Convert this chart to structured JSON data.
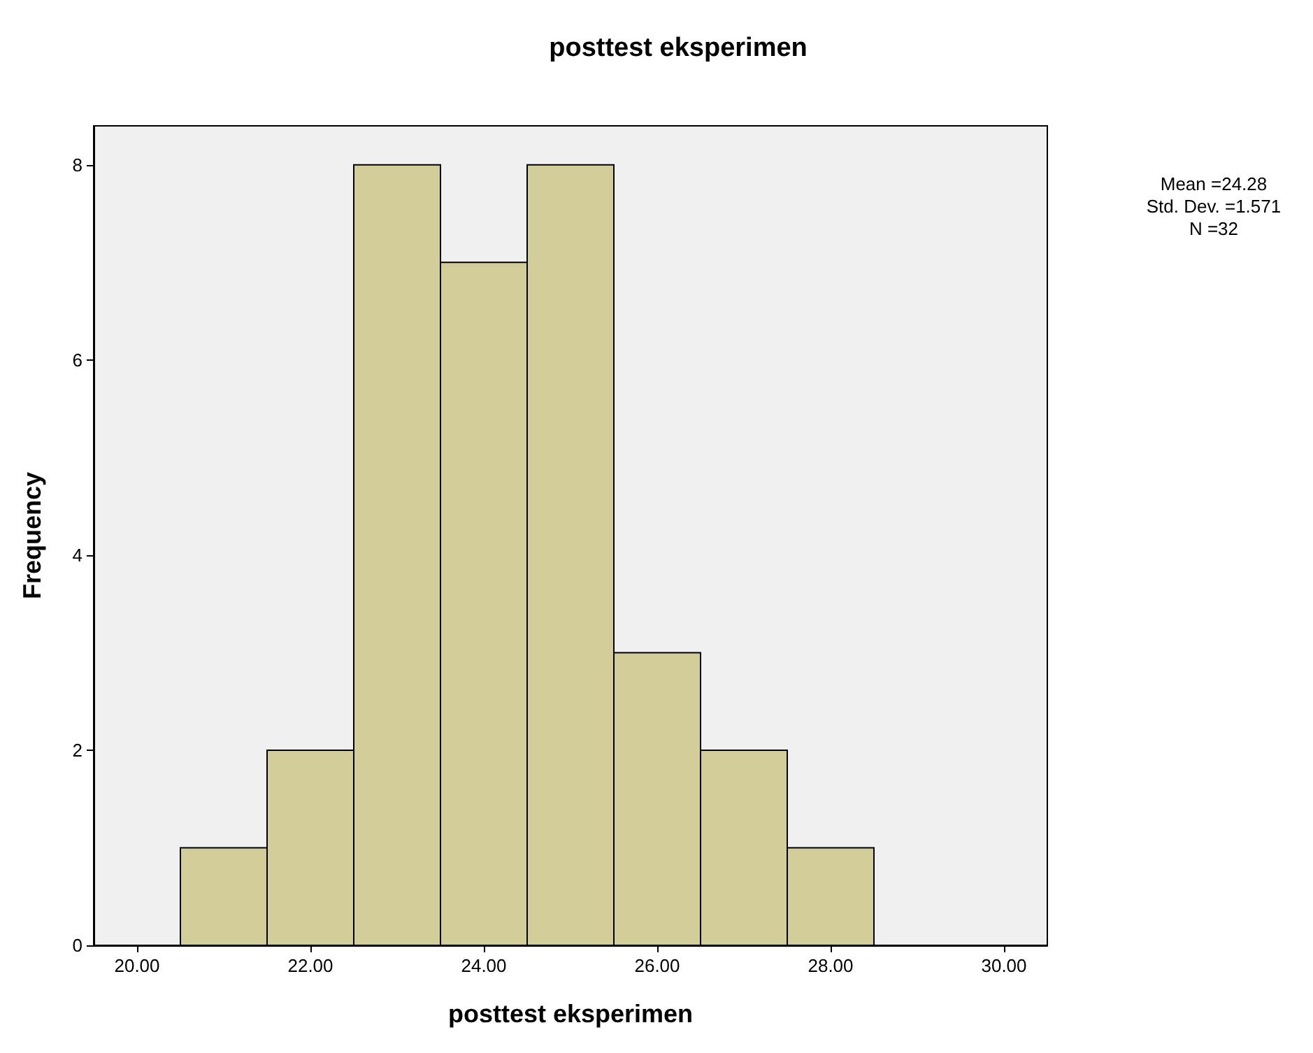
{
  "chart_data": {
    "type": "histogram",
    "title": "posttest eksperimen",
    "xlabel": "posttest eksperimen",
    "ylabel": "Frequency",
    "bins": [
      20.5,
      21.5,
      22.5,
      23.5,
      24.5,
      25.5,
      26.5,
      27.5,
      28.5
    ],
    "values": [
      1,
      2,
      8,
      7,
      8,
      3,
      2,
      1
    ],
    "color": "#d3ce99",
    "xlim": [
      19.5,
      30.5
    ],
    "xticks": [
      {
        "value": 20,
        "label": "20.00"
      },
      {
        "value": 22,
        "label": "22.00"
      },
      {
        "value": 24,
        "label": "24.00"
      },
      {
        "value": 26,
        "label": "26.00"
      },
      {
        "value": 28,
        "label": "28.00"
      },
      {
        "value": 30,
        "label": "30.00"
      }
    ],
    "ylim": [
      0,
      8.4
    ],
    "yticks": [
      0,
      2,
      4,
      6,
      8
    ],
    "grid": false,
    "annotations": [
      "Mean =24.28",
      "Std. Dev. =1.571",
      "N =32"
    ]
  }
}
